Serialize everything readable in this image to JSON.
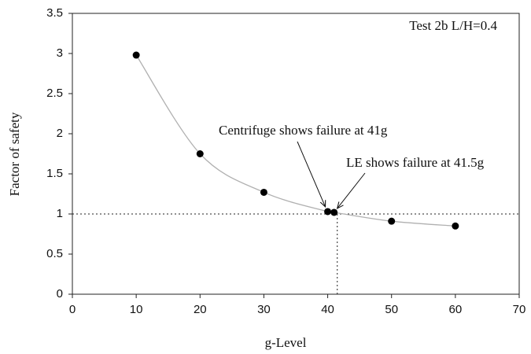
{
  "chart_data": {
    "type": "scatter",
    "title": "Test 2b L/H=0.4",
    "x_label": "g-Level",
    "y_label": "Factor of safety",
    "series": [
      {
        "color": "#000000",
        "line_color": "#b0b0b0",
        "x": [
          10,
          20,
          30,
          40,
          41,
          50,
          60
        ],
        "values": [
          2.98,
          1.75,
          1.27,
          1.03,
          1.02,
          0.91,
          0.85
        ]
      }
    ],
    "xlim": [
      0,
      70
    ],
    "xticks": [
      0,
      10,
      20,
      30,
      40,
      50,
      60,
      70
    ],
    "ylim": [
      0,
      3.5
    ],
    "yticks": [
      0,
      0.5,
      1,
      1.5,
      2,
      2.5,
      3,
      3.5
    ],
    "reference_lines": {
      "y": 1,
      "x": 41.5
    },
    "annotations": [
      "Centrifuge shows failure at 41g",
      "LE shows failure at 41.5g"
    ]
  }
}
